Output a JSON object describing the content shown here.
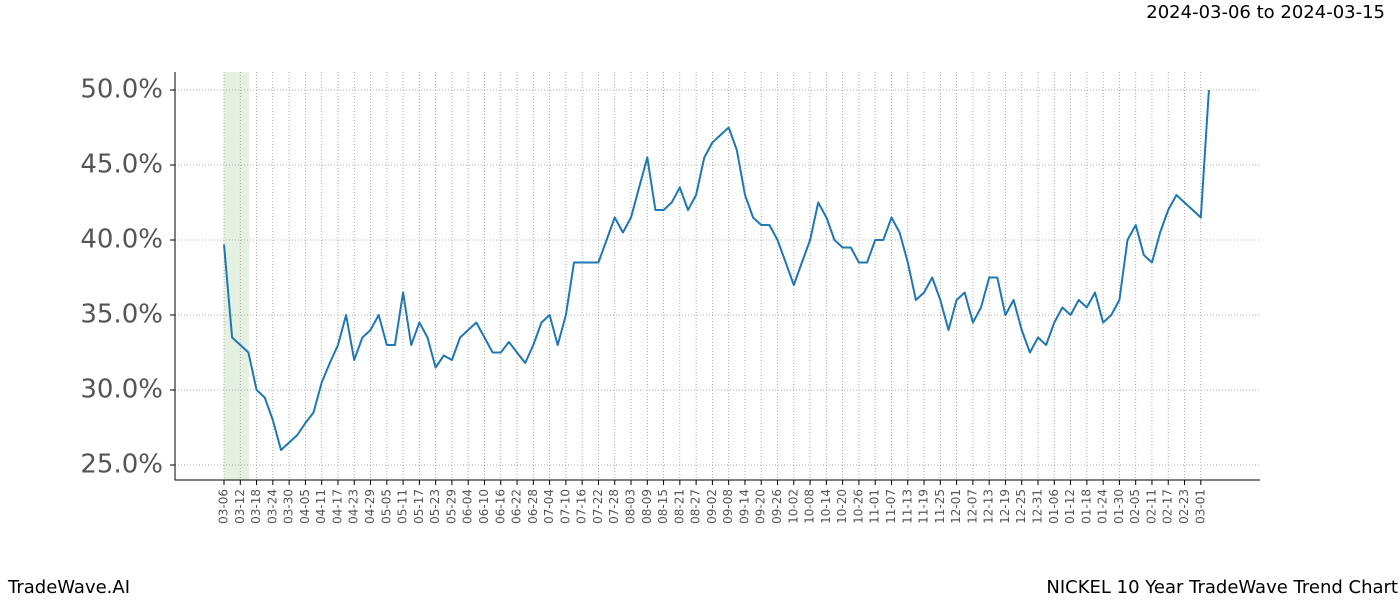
{
  "header": {
    "date_range": "2024-03-06 to 2024-03-15"
  },
  "footer": {
    "brand": "TradeWave.AI",
    "chart_name": "NICKEL 10 Year TradeWave Trend Chart"
  },
  "chart_data": {
    "type": "line",
    "categories": [
      "03-06",
      null,
      "03-12",
      null,
      "03-18",
      null,
      "03-24",
      null,
      "03-30",
      null,
      "04-05",
      null,
      "04-11",
      null,
      "04-17",
      null,
      "04-23",
      null,
      "04-29",
      null,
      "05-05",
      null,
      "05-11",
      null,
      "05-17",
      null,
      "05-23",
      null,
      "05-29",
      null,
      "06-04",
      null,
      "06-10",
      null,
      "06-16",
      null,
      "06-22",
      null,
      "06-28",
      null,
      "07-04",
      null,
      "07-10",
      null,
      "07-16",
      null,
      "07-22",
      null,
      "07-28",
      null,
      "08-03",
      null,
      "08-09",
      null,
      "08-15",
      null,
      "08-21",
      null,
      "08-27",
      null,
      "09-02",
      null,
      "09-08",
      null,
      "09-14",
      null,
      "09-20",
      null,
      "09-26",
      null,
      "10-02",
      null,
      "10-08",
      null,
      "10-14",
      null,
      "10-20",
      null,
      "10-26",
      null,
      "11-01",
      null,
      "11-07",
      null,
      "11-13",
      null,
      "11-19",
      null,
      "11-25",
      null,
      "12-01",
      null,
      "12-07",
      null,
      "12-13",
      null,
      "12-19",
      null,
      "12-25",
      null,
      "12-31",
      null,
      "01-06",
      null,
      "01-12",
      null,
      "01-18",
      null,
      "01-24",
      null,
      "01-30",
      null,
      "02-05",
      null,
      "02-11",
      null,
      "02-17",
      null,
      "02-23",
      null,
      "03-01",
      null
    ],
    "series": [
      {
        "color": "#1f77b4",
        "values": [
          39.7,
          33.5,
          33.0,
          32.5,
          30.0,
          29.5,
          28.0,
          26.0,
          26.5,
          27.0,
          27.8,
          28.5,
          30.5,
          31.8,
          33.0,
          35.0,
          32.0,
          33.5,
          34.0,
          35.0,
          33.0,
          33.0,
          36.5,
          33.0,
          34.5,
          33.5,
          31.5,
          32.3,
          32.0,
          33.5,
          34.0,
          34.5,
          33.5,
          32.5,
          32.5,
          33.2,
          32.5,
          31.8,
          33.0,
          34.5,
          35.0,
          33.0,
          35.0,
          38.5,
          38.5,
          38.5,
          38.5,
          40.0,
          41.5,
          40.5,
          41.5,
          43.5,
          45.5,
          42.0,
          42.0,
          42.5,
          43.5,
          42.0,
          43.0,
          45.5,
          46.5,
          47.0,
          47.5,
          46.0,
          43.0,
          41.5,
          41.0,
          41.0,
          40.0,
          38.5,
          37.0,
          38.5,
          40.0,
          42.5,
          41.5,
          40.0,
          39.5,
          39.5,
          38.5,
          38.5,
          40.0,
          40.0,
          41.5,
          40.5,
          38.5,
          36.0,
          36.5,
          37.5,
          36.0,
          34.0,
          36.0,
          36.5,
          34.5,
          35.5,
          37.5,
          37.5,
          35.0,
          36.0,
          34.0,
          32.5,
          33.5,
          33.0,
          34.5,
          35.5,
          35.0,
          36.0,
          35.5,
          36.5,
          34.5,
          35.0,
          36.0,
          40.0,
          41.0,
          39.0,
          38.5,
          40.5,
          42.0,
          43.0,
          42.5,
          42.0,
          41.5,
          50.0
        ]
      }
    ],
    "ylim": [
      24.0,
      51.2
    ],
    "yticks": [
      {
        "value": 25,
        "label": "25.0%"
      },
      {
        "value": 30,
        "label": "30.0%"
      },
      {
        "value": 35,
        "label": "35.0%"
      },
      {
        "value": 40,
        "label": "40.0%"
      },
      {
        "value": 45,
        "label": "45.0%"
      },
      {
        "value": 50,
        "label": "50.0%"
      }
    ],
    "grid": true
  }
}
